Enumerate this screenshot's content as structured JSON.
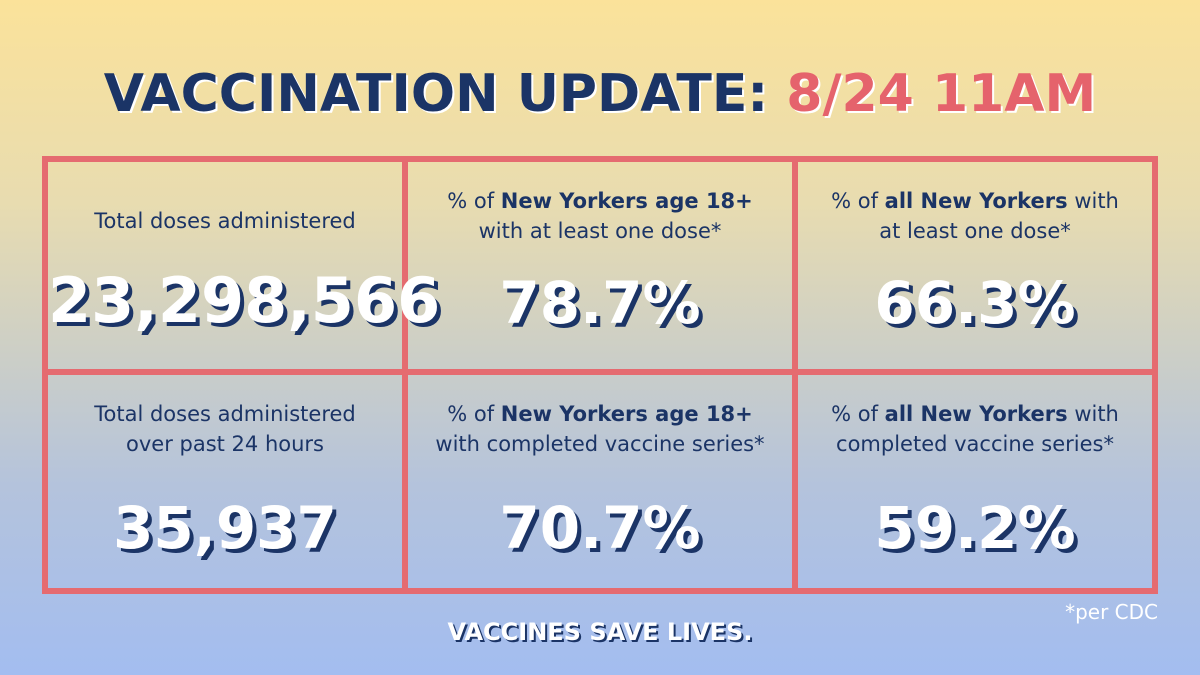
{
  "title": {
    "main": "VACCINATION UPDATE:",
    "date": "8/24 11AM"
  },
  "colors": {
    "navy": "#1b3466",
    "coral": "#e56b70",
    "white": "#ffffff"
  },
  "cells": [
    {
      "label_pre": "Total doses administered",
      "label_bold": "",
      "label_post": "",
      "label_line2": "",
      "value": "23,298,566"
    },
    {
      "label_pre": "% of ",
      "label_bold": "New Yorkers age 18+",
      "label_post": "",
      "label_line2": "with at least one dose*",
      "value": "78.7%"
    },
    {
      "label_pre": "% of ",
      "label_bold": "all New Yorkers",
      "label_post": " with",
      "label_line2": "at least one dose*",
      "value": "66.3%"
    },
    {
      "label_pre": "Total doses administered",
      "label_bold": "",
      "label_post": "",
      "label_line2": "over past 24 hours",
      "value": "35,937"
    },
    {
      "label_pre": "% of ",
      "label_bold": "New Yorkers age 18+",
      "label_post": "",
      "label_line2": "with completed vaccine series*",
      "value": "70.7%"
    },
    {
      "label_pre": "% of ",
      "label_bold": "all New Yorkers",
      "label_post": " with",
      "label_line2": "completed vaccine series*",
      "value": "59.2%"
    }
  ],
  "footer": "VACCINES SAVE LIVES.",
  "note": "*per CDC"
}
